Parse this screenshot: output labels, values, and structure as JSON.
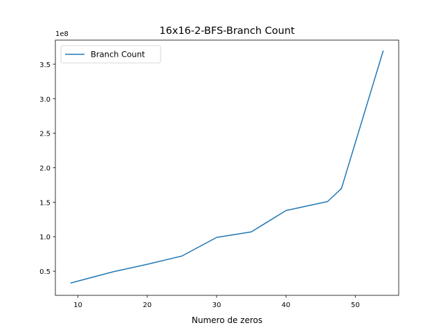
{
  "chart_data": {
    "type": "line",
    "title": "16x16-2-BFS-Branch Count",
    "xlabel": "Numero de zeros",
    "ylabel": "",
    "y_offset_label": "1e8",
    "xlim": [
      6.75,
      56.25
    ],
    "ylim": [
      0.15,
      3.85
    ],
    "x_ticks": [
      10,
      20,
      30,
      40,
      50
    ],
    "y_ticks": [
      0.5,
      1.0,
      1.5,
      2.0,
      2.5,
      3.0,
      3.5
    ],
    "y_tick_labels": [
      "0.5",
      "1.0",
      "1.5",
      "2.0",
      "2.5",
      "3.0",
      "3.5"
    ],
    "grid": false,
    "legend_position": "top-left",
    "series": [
      {
        "name": "Branch Count",
        "color": "#1f77b4",
        "x": [
          9,
          15,
          20,
          25,
          30,
          35,
          40,
          46,
          48,
          54
        ],
        "y": [
          0.33,
          0.49,
          0.6,
          0.72,
          0.99,
          1.07,
          1.38,
          1.51,
          1.7,
          3.69
        ]
      }
    ]
  }
}
